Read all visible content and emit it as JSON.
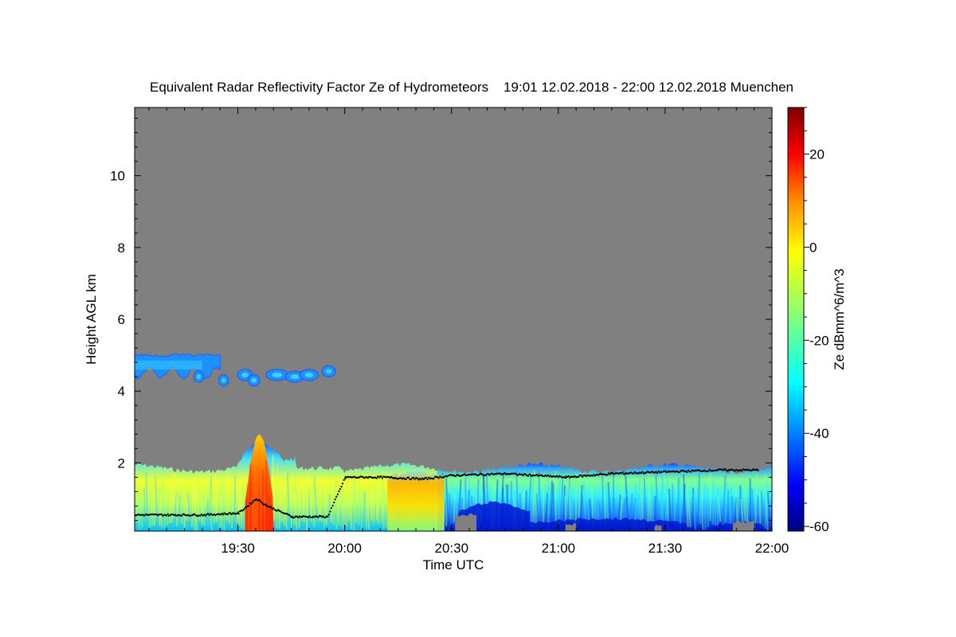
{
  "chart_data": {
    "type": "heatmap",
    "title": "Equivalent Radar Reflectivity Factor Ze of Hydrometeors    19:01 12.02.2018 - 22:00 12.02.2018 Muenchen",
    "xlabel": "Time UTC",
    "ylabel": "Height AGL km",
    "colorbar_label": "Ze dBmm^6/m^3",
    "x_range_minutes_utc": [
      1141,
      1320
    ],
    "x_ticks": [
      {
        "label": "19:30",
        "minutes": 1170
      },
      {
        "label": "20:00",
        "minutes": 1200
      },
      {
        "label": "20:30",
        "minutes": 1230
      },
      {
        "label": "21:00",
        "minutes": 1260
      },
      {
        "label": "21:30",
        "minutes": 1290
      },
      {
        "label": "22:00",
        "minutes": 1320
      }
    ],
    "y_range_km": [
      0.1,
      11.9
    ],
    "y_ticks": [
      "2",
      "4",
      "6",
      "8",
      "10"
    ],
    "colorbar_range": [
      -61,
      30
    ],
    "colorbar_ticks": [
      "20",
      "0",
      "-20",
      "-40",
      "-60"
    ],
    "background_no_signal_color": "#808080",
    "colormap": [
      "#00007f",
      "#0000ff",
      "#007fff",
      "#00ffff",
      "#7fff7f",
      "#ffff00",
      "#ff7f00",
      "#ff0000",
      "#7f0000"
    ],
    "features": [
      {
        "name": "upper cloud layer",
        "t_start": 1141,
        "t_end": 1165,
        "h_bottom": 4.5,
        "h_top": 5.0,
        "ze_dbz": -32
      },
      {
        "name": "upper cloud fragments",
        "t_start": 1171,
        "t_end": 1197,
        "h_bottom": 4.2,
        "h_top": 4.6,
        "ze_dbz": -35
      },
      {
        "name": "low cloud layer",
        "t_start": 1141,
        "t_end": 1320,
        "h_bottom": 0.1,
        "h_top": 1.9,
        "ze_dbz": -15
      },
      {
        "name": "convective core",
        "t_start": 1172,
        "t_end": 1180,
        "h_bottom": 0.1,
        "h_top": 2.8,
        "ze_dbz": 15
      },
      {
        "name": "strong echo band",
        "t_start": 1212,
        "t_end": 1228,
        "h_bottom": 0.3,
        "h_top": 1.8,
        "ze_dbz": -5
      }
    ],
    "cloud_base_km": [
      {
        "t": 1141,
        "h": 0.55
      },
      {
        "t": 1160,
        "h": 0.55
      },
      {
        "t": 1170,
        "h": 0.6
      },
      {
        "t": 1175,
        "h": 1.0
      },
      {
        "t": 1178,
        "h": 0.8
      },
      {
        "t": 1185,
        "h": 0.5
      },
      {
        "t": 1195,
        "h": 0.5
      },
      {
        "t": 1200,
        "h": 1.6
      },
      {
        "t": 1210,
        "h": 1.6
      },
      {
        "t": 1222,
        "h": 1.55
      },
      {
        "t": 1230,
        "h": 1.65
      },
      {
        "t": 1245,
        "h": 1.7
      },
      {
        "t": 1262,
        "h": 1.6
      },
      {
        "t": 1275,
        "h": 1.7
      },
      {
        "t": 1290,
        "h": 1.75
      },
      {
        "t": 1305,
        "h": 1.8
      },
      {
        "t": 1316,
        "h": 1.8
      }
    ]
  }
}
